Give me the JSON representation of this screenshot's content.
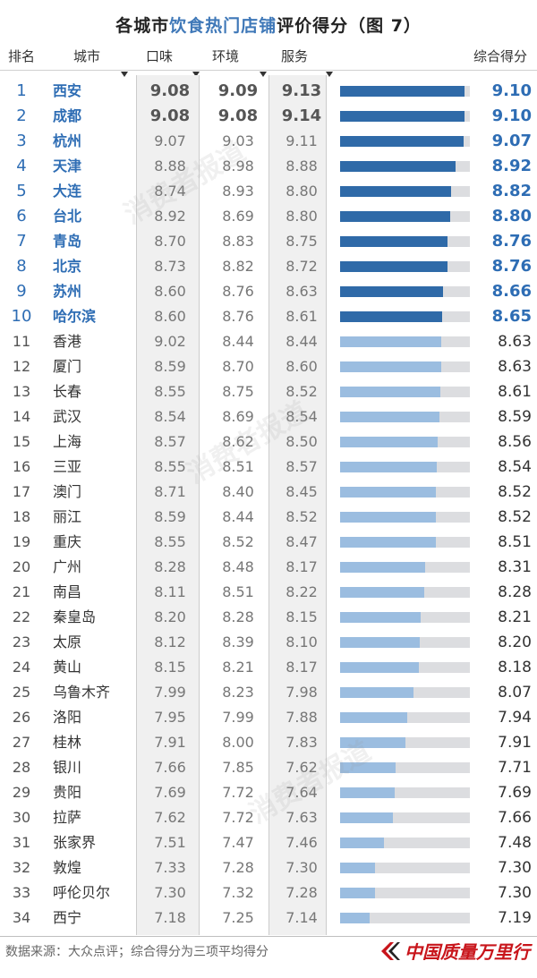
{
  "title": {
    "prefix": "各城市",
    "highlight": "饮食热门店铺",
    "suffix": "评价得分（图 7）"
  },
  "headers": {
    "rank": "排名",
    "city": "城市",
    "taste": "口味",
    "environment": "环境",
    "service": "服务",
    "total": "综合得分"
  },
  "colors": {
    "top10_bar": "#2f6aa8",
    "other_bar": "#9bbde0",
    "bar_track": "#dcdde0",
    "highlight_text": "#2e6db4",
    "brand_red": "#c8151b"
  },
  "footer": {
    "source": "数据来源：大众点评；综合得分为三项平均得分",
    "brand": "中国质量万里行"
  },
  "chart_data": {
    "type": "table",
    "title": "各城市饮食热门店铺评价得分（图 7）",
    "columns": [
      "排名",
      "城市",
      "口味",
      "环境",
      "服务",
      "综合得分"
    ],
    "bar_column": "综合得分",
    "highlight_top": 10,
    "rows": [
      {
        "rank": "1",
        "city": "西安",
        "taste": "9.08",
        "env": "9.09",
        "service": "9.13",
        "total": "9.10"
      },
      {
        "rank": "2",
        "city": "成都",
        "taste": "9.08",
        "env": "9.08",
        "service": "9.14",
        "total": "9.10"
      },
      {
        "rank": "3",
        "city": "杭州",
        "taste": "9.07",
        "env": "9.03",
        "service": "9.11",
        "total": "9.07"
      },
      {
        "rank": "4",
        "city": "天津",
        "taste": "8.88",
        "env": "8.98",
        "service": "8.88",
        "total": "8.92"
      },
      {
        "rank": "5",
        "city": "大连",
        "taste": "8.74",
        "env": "8.93",
        "service": "8.80",
        "total": "8.82"
      },
      {
        "rank": "6",
        "city": "台北",
        "taste": "8.92",
        "env": "8.69",
        "service": "8.80",
        "total": "8.80"
      },
      {
        "rank": "7",
        "city": "青岛",
        "taste": "8.70",
        "env": "8.83",
        "service": "8.75",
        "total": "8.76"
      },
      {
        "rank": "8",
        "city": "北京",
        "taste": "8.73",
        "env": "8.82",
        "service": "8.72",
        "total": "8.76"
      },
      {
        "rank": "9",
        "city": "苏州",
        "taste": "8.60",
        "env": "8.76",
        "service": "8.63",
        "total": "8.66"
      },
      {
        "rank": "10",
        "city": "哈尔滨",
        "taste": "8.60",
        "env": "8.76",
        "service": "8.61",
        "total": "8.65"
      },
      {
        "rank": "11",
        "city": "香港",
        "taste": "9.02",
        "env": "8.44",
        "service": "8.44",
        "total": "8.63"
      },
      {
        "rank": "12",
        "city": "厦门",
        "taste": "8.59",
        "env": "8.70",
        "service": "8.60",
        "total": "8.63"
      },
      {
        "rank": "13",
        "city": "长春",
        "taste": "8.55",
        "env": "8.75",
        "service": "8.52",
        "total": "8.61"
      },
      {
        "rank": "14",
        "city": "武汉",
        "taste": "8.54",
        "env": "8.69",
        "service": "8.54",
        "total": "8.59"
      },
      {
        "rank": "15",
        "city": "上海",
        "taste": "8.57",
        "env": "8.62",
        "service": "8.50",
        "total": "8.56"
      },
      {
        "rank": "16",
        "city": "三亚",
        "taste": "8.55",
        "env": "8.51",
        "service": "8.57",
        "total": "8.54"
      },
      {
        "rank": "17",
        "city": "澳门",
        "taste": "8.71",
        "env": "8.40",
        "service": "8.45",
        "total": "8.52"
      },
      {
        "rank": "18",
        "city": "丽江",
        "taste": "8.59",
        "env": "8.44",
        "service": "8.52",
        "total": "8.52"
      },
      {
        "rank": "19",
        "city": "重庆",
        "taste": "8.55",
        "env": "8.52",
        "service": "8.47",
        "total": "8.51"
      },
      {
        "rank": "20",
        "city": "广州",
        "taste": "8.28",
        "env": "8.48",
        "service": "8.17",
        "total": "8.31"
      },
      {
        "rank": "21",
        "city": "南昌",
        "taste": "8.11",
        "env": "8.51",
        "service": "8.22",
        "total": "8.28"
      },
      {
        "rank": "22",
        "city": "秦皇岛",
        "taste": "8.20",
        "env": "8.28",
        "service": "8.15",
        "total": "8.21"
      },
      {
        "rank": "23",
        "city": "太原",
        "taste": "8.12",
        "env": "8.39",
        "service": "8.10",
        "total": "8.20"
      },
      {
        "rank": "24",
        "city": "黄山",
        "taste": "8.15",
        "env": "8.21",
        "service": "8.17",
        "total": "8.18"
      },
      {
        "rank": "25",
        "city": "乌鲁木齐",
        "taste": "7.99",
        "env": "8.23",
        "service": "7.98",
        "total": "8.07"
      },
      {
        "rank": "26",
        "city": "洛阳",
        "taste": "7.95",
        "env": "7.99",
        "service": "7.88",
        "total": "7.94"
      },
      {
        "rank": "27",
        "city": "桂林",
        "taste": "7.91",
        "env": "8.00",
        "service": "7.83",
        "total": "7.91"
      },
      {
        "rank": "28",
        "city": "银川",
        "taste": "7.66",
        "env": "7.85",
        "service": "7.62",
        "total": "7.71"
      },
      {
        "rank": "29",
        "city": "贵阳",
        "taste": "7.69",
        "env": "7.72",
        "service": "7.64",
        "total": "7.69"
      },
      {
        "rank": "30",
        "city": "拉萨",
        "taste": "7.62",
        "env": "7.72",
        "service": "7.63",
        "total": "7.66"
      },
      {
        "rank": "31",
        "city": "张家界",
        "taste": "7.51",
        "env": "7.47",
        "service": "7.46",
        "total": "7.48"
      },
      {
        "rank": "32",
        "city": "敦煌",
        "taste": "7.33",
        "env": "7.28",
        "service": "7.30",
        "total": "7.30"
      },
      {
        "rank": "33",
        "city": "呼伦贝尔",
        "taste": "7.30",
        "env": "7.32",
        "service": "7.28",
        "total": "7.30"
      },
      {
        "rank": "34",
        "city": "西宁",
        "taste": "7.18",
        "env": "7.25",
        "service": "7.14",
        "total": "7.19"
      }
    ]
  }
}
